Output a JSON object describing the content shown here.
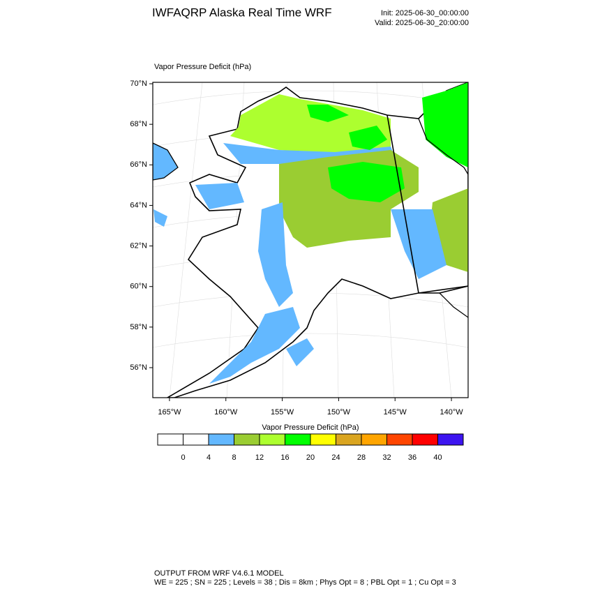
{
  "header": {
    "title": "IWFAQRP Alaska Real Time WRF",
    "init": "Init: 2025-06-30_00:00:00",
    "valid": "Valid: 2025-06-30_20:00:00"
  },
  "map": {
    "field_label": "Vapor Pressure Deficit   (hPa)",
    "lat_range": [
      54.52,
      70.07
    ],
    "lon_range": [
      -166.48,
      -138.52
    ],
    "lat_ticks": [
      {
        "value": 70,
        "label": "70°N"
      },
      {
        "value": 68,
        "label": "68°N"
      },
      {
        "value": 66,
        "label": "66°N"
      },
      {
        "value": 64,
        "label": "64°N"
      },
      {
        "value": 62,
        "label": "62°N"
      },
      {
        "value": 60,
        "label": "60°N"
      },
      {
        "value": 58,
        "label": "58°N"
      },
      {
        "value": 56,
        "label": "56°N"
      }
    ],
    "lon_ticks": [
      {
        "value": -165,
        "label": "165°W"
      },
      {
        "value": -160,
        "label": "160°W"
      },
      {
        "value": -155,
        "label": "155°W"
      },
      {
        "value": -150,
        "label": "150°W"
      },
      {
        "value": -145,
        "label": "145°W"
      },
      {
        "value": -140,
        "label": "140°W"
      }
    ]
  },
  "colorbar": {
    "title": "Vapor Pressure Deficit  (hPa)",
    "levels": [
      0,
      4,
      8,
      12,
      16,
      20,
      24,
      28,
      32,
      36,
      40
    ],
    "colors": [
      "#ffffff",
      "#ffffff",
      "#63b8ff",
      "#9acd32",
      "#adff2f",
      "#00ff00",
      "#ffff00",
      "#daa520",
      "#ffa500",
      "#ff4500",
      "#ff0000",
      "#3c14f0"
    ]
  },
  "footer": {
    "line1": "OUTPUT FROM WRF V4.6.1 MODEL",
    "line2": "WE = 225 ; SN = 225 ; Levels = 38 ; Dis = 8km ; Phys Opt = 8 ; PBL Opt = 1 ; Cu Opt = 3"
  }
}
